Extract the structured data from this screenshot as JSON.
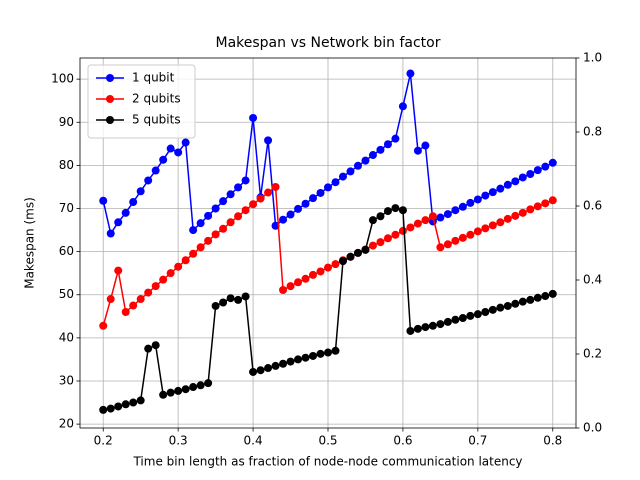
{
  "chart_data": {
    "type": "line",
    "title": "Makespan vs Network bin factor",
    "x_label": "Time bin length as fraction of node-node communication latency",
    "y_label": "Makespan (ms)",
    "x": [
      0.2,
      0.21,
      0.22,
      0.23,
      0.24,
      0.25,
      0.26,
      0.27,
      0.28,
      0.29,
      0.3,
      0.31,
      0.32,
      0.33,
      0.34,
      0.35,
      0.36,
      0.37,
      0.38,
      0.39,
      0.4,
      0.41,
      0.42,
      0.43,
      0.44,
      0.45,
      0.46,
      0.47,
      0.48,
      0.49,
      0.5,
      0.51,
      0.52,
      0.53,
      0.54,
      0.55,
      0.56,
      0.57,
      0.58,
      0.59,
      0.6,
      0.61,
      0.62,
      0.63,
      0.64,
      0.65,
      0.66,
      0.67,
      0.68,
      0.69,
      0.7,
      0.71,
      0.72,
      0.73,
      0.74,
      0.75,
      0.76,
      0.77,
      0.78,
      0.79,
      0.8
    ],
    "series": [
      {
        "name": "1 qubit",
        "color": "#0000ff",
        "values": [
          71.8,
          64.2,
          66.8,
          69.0,
          71.5,
          74.0,
          76.5,
          78.8,
          81.3,
          83.9,
          83.0,
          85.3,
          65.0,
          66.6,
          68.3,
          70.0,
          71.7,
          73.3,
          74.9,
          76.5,
          91.0,
          72.6,
          85.8,
          66.0,
          67.4,
          68.6,
          69.9,
          71.1,
          72.4,
          73.6,
          74.9,
          76.1,
          77.4,
          78.6,
          79.9,
          81.1,
          82.4,
          83.6,
          84.9,
          86.2,
          93.7,
          101.3,
          83.4,
          84.6,
          67.0,
          67.9,
          68.7,
          69.6,
          70.4,
          71.3,
          72.1,
          73.0,
          73.8,
          74.6,
          75.5,
          76.3,
          77.2,
          78.0,
          78.9,
          79.7,
          80.6
        ]
      },
      {
        "name": "2 qubits",
        "color": "#ff0000",
        "values": [
          42.8,
          49.0,
          55.6,
          46.0,
          47.5,
          49.0,
          50.5,
          52.0,
          53.5,
          55.0,
          56.5,
          58.0,
          59.5,
          61.0,
          62.5,
          64.0,
          65.3,
          66.8,
          68.2,
          69.6,
          71.0,
          72.3,
          73.7,
          75.0,
          51.1,
          52.0,
          52.9,
          53.7,
          54.6,
          55.4,
          56.3,
          57.1,
          58.0,
          58.8,
          59.7,
          60.5,
          61.4,
          62.2,
          63.1,
          63.9,
          64.8,
          65.6,
          66.5,
          67.3,
          68.2,
          61.0,
          61.7,
          62.5,
          63.2,
          63.9,
          64.7,
          65.4,
          66.1,
          66.8,
          67.6,
          68.3,
          69.0,
          69.8,
          70.5,
          71.2,
          71.9
        ]
      },
      {
        "name": "5 qubits",
        "color": "#000000",
        "values": [
          23.3,
          23.6,
          24.1,
          24.6,
          25.0,
          25.5,
          37.5,
          38.3,
          26.8,
          27.3,
          27.7,
          28.1,
          28.6,
          29.0,
          29.5,
          47.4,
          48.2,
          49.2,
          48.8,
          49.6,
          32.1,
          32.5,
          33.0,
          33.5,
          34.0,
          34.5,
          35.0,
          35.4,
          35.8,
          36.3,
          36.6,
          37.0,
          57.8,
          58.8,
          59.7,
          60.4,
          67.3,
          68.2,
          69.4,
          70.1,
          69.6,
          41.6,
          42.1,
          42.5,
          42.8,
          43.2,
          43.7,
          44.2,
          44.6,
          45.1,
          45.5,
          46.0,
          46.5,
          47.0,
          47.4,
          47.9,
          48.4,
          48.8,
          49.3,
          49.7,
          50.2
        ]
      }
    ],
    "xlim": [
      0.169,
      0.831
    ],
    "xticks": [
      0.2,
      0.3,
      0.4,
      0.5,
      0.6,
      0.7,
      0.8
    ],
    "ylim": [
      19.1,
      104.9
    ],
    "yticks": [
      20,
      30,
      40,
      50,
      60,
      70,
      80,
      90,
      100
    ],
    "y2lim": [
      0,
      1
    ],
    "y2ticks": [
      {
        "value": 0,
        "label": "0.0"
      },
      {
        "value": 0.2,
        "label": "0.2"
      },
      {
        "value": 0.4,
        "label": "0.4"
      },
      {
        "value": 0.6,
        "label": "0.6"
      },
      {
        "value": 0.8,
        "label": "0.8"
      },
      {
        "value": 1,
        "label": "1.0"
      }
    ],
    "grid": true,
    "legend": "upper left"
  }
}
